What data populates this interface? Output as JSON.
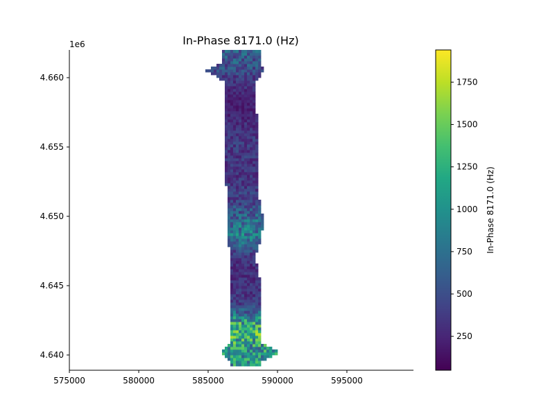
{
  "chart_data": {
    "type": "heatmap",
    "title": "In-Phase 8171.0 (Hz)",
    "xlabel": "",
    "ylabel": "",
    "y_offset_label": "1e6",
    "xlim": [
      575000,
      599800
    ],
    "ylim": [
      4638900,
      4662000
    ],
    "x_ticks": [
      575000,
      580000,
      585000,
      590000,
      595000
    ],
    "x_tick_labels": [
      "575000",
      "580000",
      "585000",
      "590000",
      "595000"
    ],
    "y_ticks": [
      4640000,
      4645000,
      4650000,
      4655000,
      4660000
    ],
    "y_tick_labels": [
      "4.640",
      "4.645",
      "4.650",
      "4.655",
      "4.660"
    ],
    "grid": false,
    "colormap": "viridis",
    "colorbar": {
      "label": "In-Phase 8171.0 (Hz)",
      "range": [
        50,
        1940
      ],
      "ticks": [
        250,
        500,
        750,
        1000,
        1250,
        1500,
        1750
      ],
      "tick_labels": [
        "250",
        "500",
        "750",
        "1000",
        "1250",
        "1500",
        "1750"
      ]
    },
    "cell_size": 200,
    "strip_rows": [
      {
        "y": 4661800,
        "x_start": 586000,
        "x_end": 588800,
        "value": 600
      },
      {
        "y": 4661000,
        "x_start": 586000,
        "x_end": 588800,
        "value": 560
      },
      {
        "y": 4660400,
        "x_start": 584800,
        "x_end": 589000,
        "value": 480
      },
      {
        "y": 4659600,
        "x_start": 586200,
        "x_end": 588400,
        "value": 330
      },
      {
        "y": 4658000,
        "x_start": 586200,
        "x_end": 588400,
        "value": 200
      },
      {
        "y": 4656500,
        "x_start": 586200,
        "x_end": 588600,
        "value": 300
      },
      {
        "y": 4655000,
        "x_start": 586200,
        "x_end": 588600,
        "value": 380
      },
      {
        "y": 4653000,
        "x_start": 586200,
        "x_end": 588600,
        "value": 330
      },
      {
        "y": 4651000,
        "x_start": 586400,
        "x_end": 588700,
        "value": 420
      },
      {
        "y": 4649500,
        "x_start": 586400,
        "x_end": 589000,
        "value": 720
      },
      {
        "y": 4648300,
        "x_start": 586400,
        "x_end": 588800,
        "value": 820
      },
      {
        "y": 4647000,
        "x_start": 586600,
        "x_end": 588400,
        "value": 330
      },
      {
        "y": 4645500,
        "x_start": 586600,
        "x_end": 588700,
        "value": 300
      },
      {
        "y": 4643500,
        "x_start": 586600,
        "x_end": 588700,
        "value": 380
      },
      {
        "y": 4642000,
        "x_start": 586600,
        "x_end": 588700,
        "value": 1250
      },
      {
        "y": 4640800,
        "x_start": 586600,
        "x_end": 588700,
        "value": 1150
      },
      {
        "y": 4640100,
        "x_start": 585800,
        "x_end": 590100,
        "value": 1000
      },
      {
        "y": 4639400,
        "x_start": 586600,
        "x_end": 588700,
        "value": 1050
      }
    ]
  }
}
